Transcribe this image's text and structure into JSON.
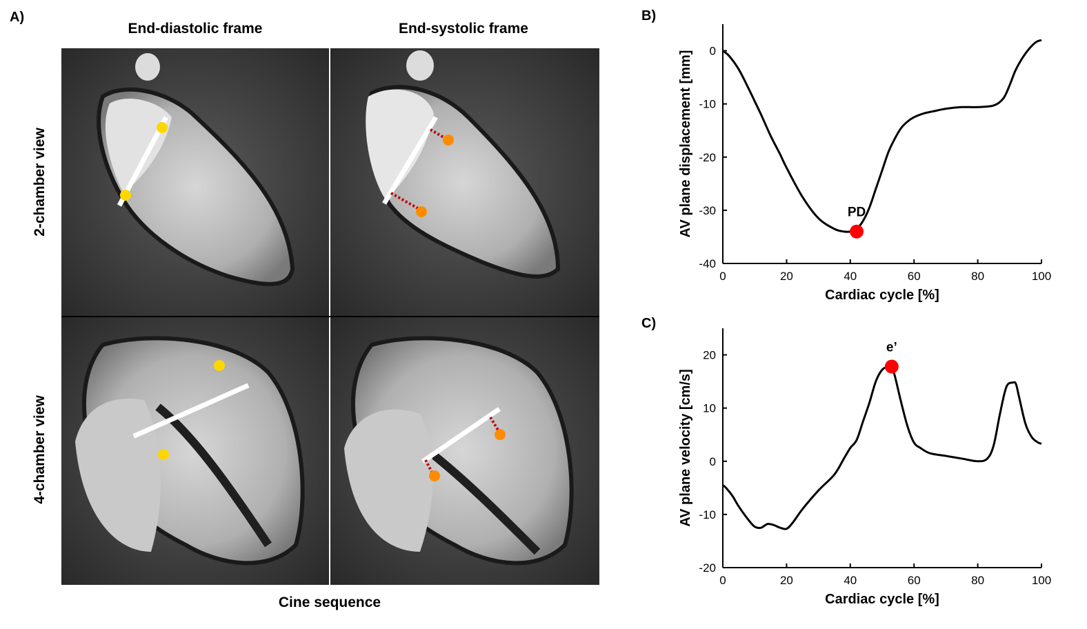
{
  "figure": {
    "panel_a": "A)",
    "panel_b": "B)",
    "panel_c": "C)",
    "col_titles": [
      "End-diastolic frame",
      "End-systolic frame"
    ],
    "row_titles": [
      "2-chamber view",
      "4-chamber view"
    ],
    "bottom_title": "Cine sequence"
  },
  "colors": {
    "line": "#000000",
    "marker_red": "#ff0000",
    "dot_yellow": "#ffd700",
    "dot_orange": "#ff8c00",
    "dashed_red": "#c00000",
    "plane_line": "#ffffff"
  },
  "chart_data": [
    {
      "type": "line",
      "panel": "B)",
      "xlabel": "Cardiac cycle [%]",
      "ylabel": "AV plane displacement [mm]",
      "xlim": [
        0,
        100
      ],
      "ylim": [
        -40,
        5
      ],
      "xticks": [
        0,
        20,
        40,
        60,
        80,
        100
      ],
      "yticks": [
        0,
        -10,
        -20,
        -30,
        -40
      ],
      "grid": false,
      "series": [
        {
          "x": [
            0,
            2,
            5,
            8,
            10,
            12,
            15,
            18,
            20,
            25,
            30,
            35,
            38,
            40,
            42,
            44,
            46,
            48,
            50,
            52,
            54,
            56,
            58,
            60,
            63,
            66,
            70,
            75,
            80,
            85,
            88,
            90,
            92,
            95,
            98,
            100
          ],
          "y": [
            0,
            -1,
            -3.5,
            -7,
            -9.5,
            -12,
            -16,
            -19.5,
            -22,
            -27.5,
            -31.5,
            -33.5,
            -34,
            -34,
            -33.5,
            -32,
            -29.5,
            -26,
            -22.5,
            -19,
            -16.5,
            -14.5,
            -13.3,
            -12.5,
            -11.8,
            -11.4,
            -10.9,
            -10.6,
            -10.6,
            -10.3,
            -9,
            -6.5,
            -3.5,
            -0.5,
            1.5,
            2
          ]
        }
      ],
      "markers": [
        {
          "label": "PD",
          "x": 42,
          "y": -34
        }
      ]
    },
    {
      "type": "line",
      "panel": "C)",
      "xlabel": "Cardiac cycle [%]",
      "ylabel": "AV plane velocity [cm/s]",
      "xlim": [
        0,
        100
      ],
      "ylim": [
        -20,
        25
      ],
      "xticks": [
        0,
        20,
        40,
        60,
        80,
        100
      ],
      "yticks": [
        20,
        10,
        0,
        -10,
        -20
      ],
      "grid": false,
      "series": [
        {
          "x": [
            0,
            1,
            3,
            5,
            8,
            10,
            12,
            14,
            16,
            18,
            20,
            22,
            25,
            30,
            35,
            38,
            40,
            42,
            44,
            46,
            48,
            50,
            52,
            53,
            54,
            56,
            58,
            60,
            62,
            65,
            70,
            75,
            80,
            83,
            85,
            87,
            89,
            91,
            92,
            93,
            95,
            97,
            99,
            100
          ],
          "y": [
            -4.5,
            -5,
            -6.5,
            -8.5,
            -11,
            -12.3,
            -12.5,
            -11.8,
            -12,
            -12.5,
            -12.7,
            -11.5,
            -9,
            -5.5,
            -2.5,
            0.5,
            2.5,
            4,
            7.5,
            11,
            15,
            17.2,
            17.8,
            17.8,
            16,
            11,
            6.5,
            3.5,
            2.5,
            1.5,
            1,
            0.5,
            0,
            0.5,
            3,
            9,
            14,
            14.8,
            14.5,
            12,
            7,
            4.5,
            3.5,
            3.3
          ]
        }
      ],
      "markers": [
        {
          "label": "e’",
          "x": 53,
          "y": 17.8
        }
      ]
    }
  ]
}
